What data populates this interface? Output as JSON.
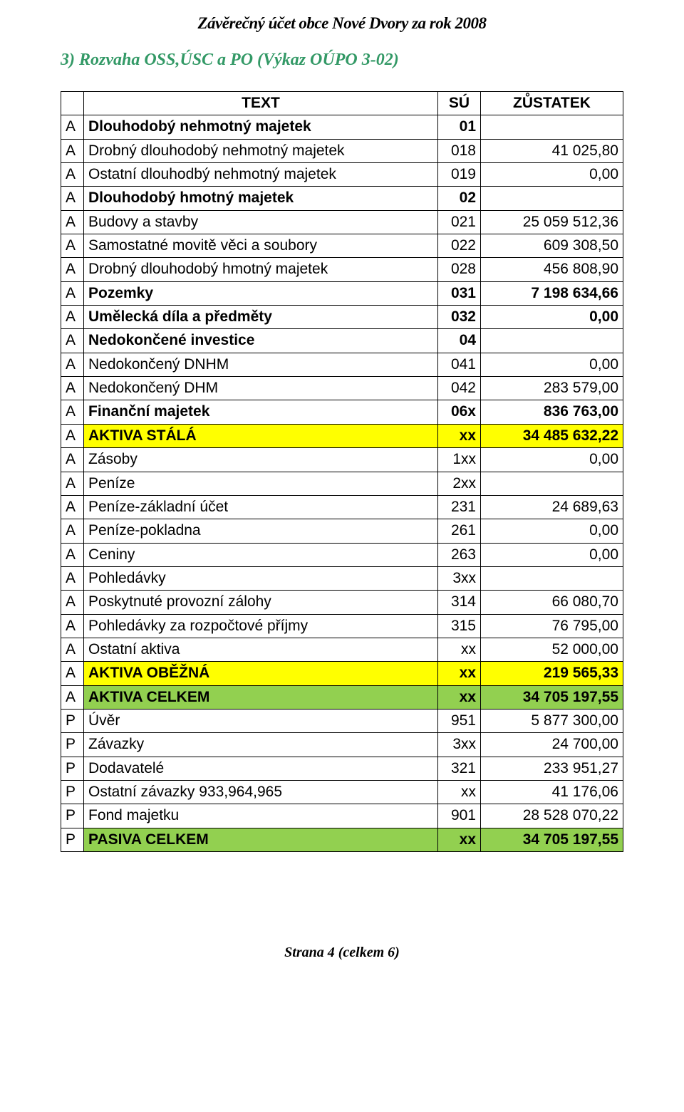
{
  "doc_header": "Závěrečný účet obce Nové Dvory  za rok 2008",
  "section_title": "3) Rozvaha OSS,ÚSC a PO (Výkaz OÚPO 3-02)",
  "footer": "Strana 4 (celkem 6)",
  "table": {
    "header": {
      "c0": "",
      "c1": "TEXT",
      "c2": "SÚ",
      "c3": "ZŮSTATEK"
    },
    "colors": {
      "highlight_yellow": "#ffff00",
      "highlight_green": "#92d050",
      "section_title_color": "#339966"
    },
    "font": {
      "cell_fontsize": 21,
      "header_italic_fontsize": 23,
      "section_title_fontsize": 24
    },
    "rows": [
      {
        "m": "A",
        "text": "Dlouhodobý nehmotný majetek",
        "su": "01",
        "val": "",
        "bold": true
      },
      {
        "m": "A",
        "text": "Drobný dlouhodobý nehmotný majetek",
        "su": "018",
        "val": "41 025,80"
      },
      {
        "m": "A",
        "text": "Ostatní dlouhodbý nehmotný majetek",
        "su": "019",
        "val": "0,00"
      },
      {
        "m": "A",
        "text": "Dlouhodobý hmotný majetek",
        "su": "02",
        "val": "",
        "bold": true
      },
      {
        "m": "A",
        "text": "Budovy a stavby",
        "su": "021",
        "val": "25 059 512,36"
      },
      {
        "m": "A",
        "text": "Samostatné movitě věci a soubory",
        "su": "022",
        "val": "609 308,50"
      },
      {
        "m": "A",
        "text": "Drobný dlouhodobý hmotný majetek",
        "su": "028",
        "val": "456 808,90"
      },
      {
        "m": "A",
        "text": "Pozemky",
        "su": "031",
        "val": "7 198 634,66",
        "bold": true
      },
      {
        "m": "A",
        "text": "Umělecká díla a předměty",
        "su": "032",
        "val": "0,00",
        "bold": true
      },
      {
        "m": "A",
        "text": "Nedokončené investice",
        "su": "04",
        "val": "",
        "bold": true
      },
      {
        "m": "A",
        "text": "Nedokončený DNHM",
        "su": "041",
        "val": "0,00"
      },
      {
        "m": "A",
        "text": "Nedokončený DHM",
        "su": "042",
        "val": "283 579,00"
      },
      {
        "m": "A",
        "text": "Finanční majetek",
        "su": "06x",
        "val": "836 763,00",
        "bold": true
      },
      {
        "m": "A",
        "text": "AKTIVA STÁLÁ",
        "su": "xx",
        "val": "34 485 632,22",
        "bold": true,
        "hl": "yellow"
      },
      {
        "m": "A",
        "text": "Zásoby",
        "su": "1xx",
        "val": "0,00"
      },
      {
        "m": "A",
        "text": "Peníze",
        "su": "2xx",
        "val": ""
      },
      {
        "m": "A",
        "text": "Peníze-základní účet",
        "su": "231",
        "val": "24 689,63"
      },
      {
        "m": "A",
        "text": "Peníze-pokladna",
        "su": "261",
        "val": "0,00"
      },
      {
        "m": "A",
        "text": "Ceniny",
        "su": "263",
        "val": "0,00"
      },
      {
        "m": "A",
        "text": "Pohledávky",
        "su": "3xx",
        "val": ""
      },
      {
        "m": "A",
        "text": "Poskytnuté provozní zálohy",
        "su": "314",
        "val": "66 080,70"
      },
      {
        "m": "A",
        "text": "Pohledávky za rozpočtové příjmy",
        "su": "315",
        "val": "76 795,00"
      },
      {
        "m": "A",
        "text": "Ostatní aktiva",
        "su": "xx",
        "val": "52 000,00"
      },
      {
        "m": "A",
        "text": "AKTIVA OBĚŽNÁ",
        "su": "xx",
        "val": "219 565,33",
        "bold": true,
        "hl": "yellow"
      },
      {
        "m": "A",
        "text": "AKTIVA CELKEM",
        "su": "xx",
        "val": "34 705 197,55",
        "bold": true,
        "hl": "green"
      },
      {
        "m": "P",
        "text": "Úvěr",
        "su": "951",
        "val": "5 877 300,00"
      },
      {
        "m": "P",
        "text": "Závazky",
        "su": "3xx",
        "val": "24 700,00"
      },
      {
        "m": "P",
        "text": "Dodavatelé",
        "su": "321",
        "val": "233 951,27"
      },
      {
        "m": "P",
        "text": "Ostatní závazky 933,964,965",
        "su": "xx",
        "val": "41 176,06"
      },
      {
        "m": "P",
        "text": "Fond majetku",
        "su": "901",
        "val": "28 528 070,22"
      },
      {
        "m": "P",
        "text": "PASIVA CELKEM",
        "su": "xx",
        "val": "34 705 197,55",
        "bold": true,
        "hl": "green"
      }
    ]
  }
}
